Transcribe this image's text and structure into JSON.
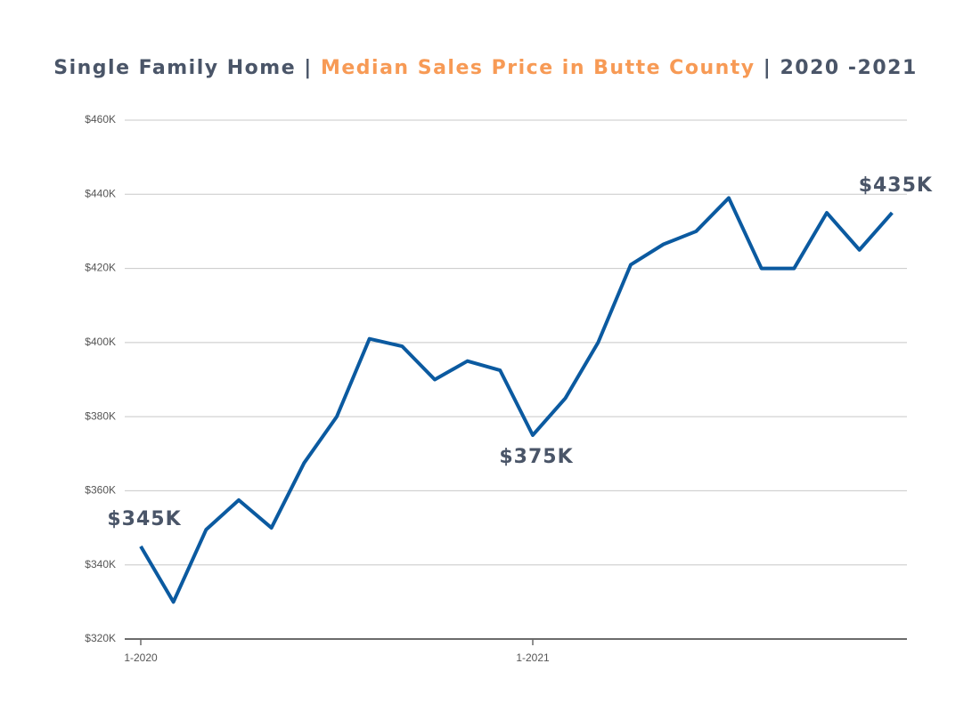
{
  "chart_data": {
    "type": "line",
    "title": [
      "Single Family Home | ",
      "Median Sales Price in Butte County",
      " | 2020 -2021"
    ],
    "title_colors": [
      "#4a5568",
      "#f79a55",
      "#4a5568"
    ],
    "categories": [
      "1-2020",
      null,
      null,
      null,
      null,
      null,
      null,
      null,
      null,
      null,
      null,
      null,
      "1-2021",
      null,
      null,
      null,
      null,
      null,
      null,
      null,
      null,
      null,
      null,
      null
    ],
    "series": [
      {
        "name": "Median Sales Price",
        "color": "#0b5aa0",
        "values": [
          345000,
          330000,
          349500,
          357500,
          350000,
          367500,
          380000,
          401000,
          399000,
          390000,
          395000,
          392500,
          375000,
          385000,
          400000,
          421000,
          426500,
          430000,
          439000,
          420000,
          420000,
          435000,
          425000,
          435000
        ],
        "value_labels": [
          "$345K",
          null,
          null,
          null,
          null,
          null,
          null,
          null,
          null,
          null,
          null,
          null,
          "$375K",
          null,
          null,
          null,
          null,
          null,
          null,
          null,
          null,
          null,
          null,
          "$435K"
        ]
      }
    ],
    "ylim": [
      320000,
      460000
    ],
    "yticks": [
      {
        "value": 320000,
        "label": "$320K"
      },
      {
        "value": 340000,
        "label": "$340K"
      },
      {
        "value": 360000,
        "label": "$360K"
      },
      {
        "value": 380000,
        "label": "$380K"
      },
      {
        "value": 400000,
        "label": "$400K"
      },
      {
        "value": 420000,
        "label": "$420K"
      },
      {
        "value": 440000,
        "label": "$440K"
      },
      {
        "value": 460000,
        "label": "$460K"
      }
    ],
    "grid": true
  }
}
